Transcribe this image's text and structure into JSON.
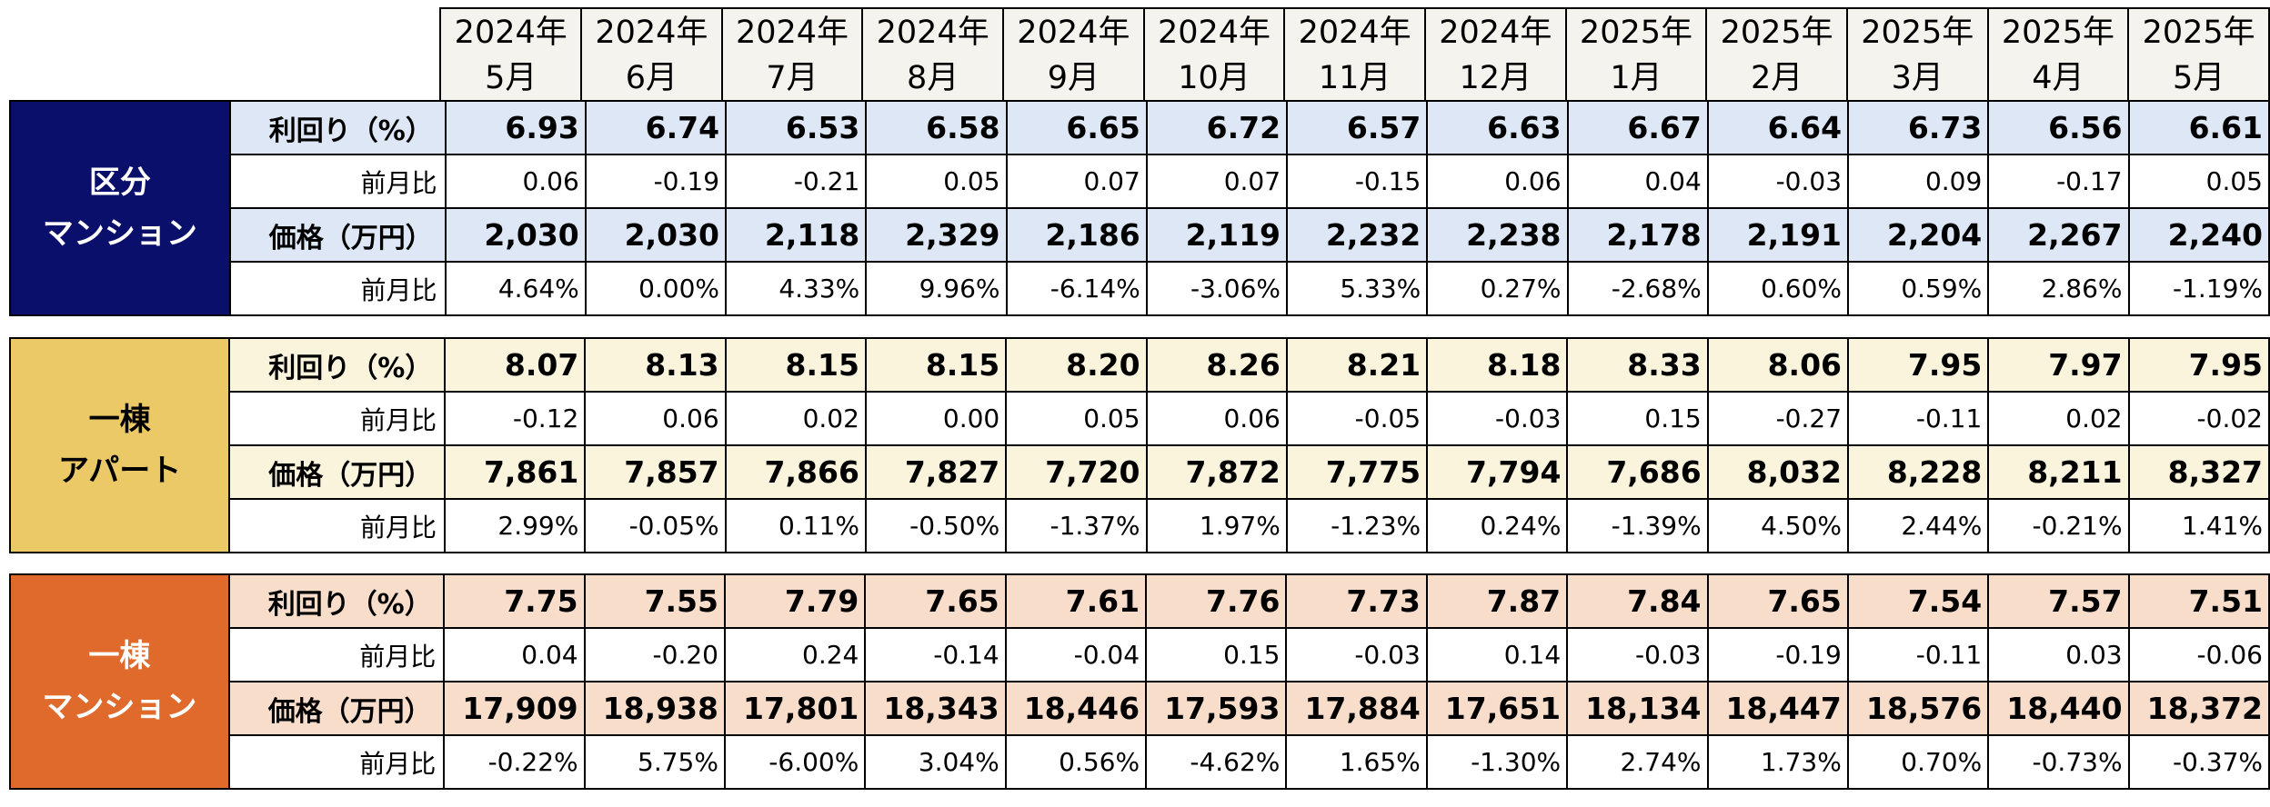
{
  "months": [
    {
      "year": "2024年",
      "month": "5月"
    },
    {
      "year": "2024年",
      "month": "6月"
    },
    {
      "year": "2024年",
      "month": "7月"
    },
    {
      "year": "2024年",
      "month": "8月"
    },
    {
      "year": "2024年",
      "month": "9月"
    },
    {
      "year": "2024年",
      "month": "10月"
    },
    {
      "year": "2024年",
      "month": "11月"
    },
    {
      "year": "2024年",
      "month": "12月"
    },
    {
      "year": "2025年",
      "month": "1月"
    },
    {
      "year": "2025年",
      "month": "2月"
    },
    {
      "year": "2025年",
      "month": "3月"
    },
    {
      "year": "2025年",
      "month": "4月"
    },
    {
      "year": "2025年",
      "month": "5月"
    }
  ],
  "labels": {
    "yield": "利回り（%）",
    "mom": "前月比",
    "price": "価格（万円）"
  },
  "sections": [
    {
      "line1": "区分",
      "line2": "マンション",
      "colors": {
        "category_bg": "#0a0f6b",
        "row_bg": "#dde7f6"
      },
      "yield": [
        "6.93",
        "6.74",
        "6.53",
        "6.58",
        "6.65",
        "6.72",
        "6.57",
        "6.63",
        "6.67",
        "6.64",
        "6.73",
        "6.56",
        "6.61"
      ],
      "yield_mom": [
        "0.06",
        "-0.19",
        "-0.21",
        "0.05",
        "0.07",
        "0.07",
        "-0.15",
        "0.06",
        "0.04",
        "-0.03",
        "0.09",
        "-0.17",
        "0.05"
      ],
      "price": [
        "2,030",
        "2,030",
        "2,118",
        "2,329",
        "2,186",
        "2,119",
        "2,232",
        "2,238",
        "2,178",
        "2,191",
        "2,204",
        "2,267",
        "2,240"
      ],
      "price_mom": [
        "4.64%",
        "0.00%",
        "4.33%",
        "9.96%",
        "-6.14%",
        "-3.06%",
        "5.33%",
        "0.27%",
        "-2.68%",
        "0.60%",
        "0.59%",
        "2.86%",
        "-1.19%"
      ]
    },
    {
      "line1": "一棟",
      "line2": "アパート",
      "colors": {
        "category_bg": "#ebc966",
        "row_bg": "#fbf4dd"
      },
      "yield": [
        "8.07",
        "8.13",
        "8.15",
        "8.15",
        "8.20",
        "8.26",
        "8.21",
        "8.18",
        "8.33",
        "8.06",
        "7.95",
        "7.97",
        "7.95"
      ],
      "yield_mom": [
        "-0.12",
        "0.06",
        "0.02",
        "0.00",
        "0.05",
        "0.06",
        "-0.05",
        "-0.03",
        "0.15",
        "-0.27",
        "-0.11",
        "0.02",
        "-0.02"
      ],
      "price": [
        "7,861",
        "7,857",
        "7,866",
        "7,827",
        "7,720",
        "7,872",
        "7,775",
        "7,794",
        "7,686",
        "8,032",
        "8,228",
        "8,211",
        "8,327"
      ],
      "price_mom": [
        "2.99%",
        "-0.05%",
        "0.11%",
        "-0.50%",
        "-1.37%",
        "1.97%",
        "-1.23%",
        "0.24%",
        "-1.39%",
        "4.50%",
        "2.44%",
        "-0.21%",
        "1.41%"
      ]
    },
    {
      "line1": "一棟",
      "line2": "マンション",
      "colors": {
        "category_bg": "#e06a2b",
        "row_bg": "#f9ddcb"
      },
      "yield": [
        "7.75",
        "7.55",
        "7.79",
        "7.65",
        "7.61",
        "7.76",
        "7.73",
        "7.87",
        "7.84",
        "7.65",
        "7.54",
        "7.57",
        "7.51"
      ],
      "yield_mom": [
        "0.04",
        "-0.20",
        "0.24",
        "-0.14",
        "-0.04",
        "0.15",
        "-0.03",
        "0.14",
        "-0.03",
        "-0.19",
        "-0.11",
        "0.03",
        "-0.06"
      ],
      "price": [
        "17,909",
        "18,938",
        "17,801",
        "18,343",
        "18,446",
        "17,593",
        "17,884",
        "17,651",
        "18,134",
        "18,447",
        "18,576",
        "18,440",
        "18,372"
      ],
      "price_mom": [
        "-0.22%",
        "5.75%",
        "-6.00%",
        "3.04%",
        "0.56%",
        "-4.62%",
        "1.65%",
        "-1.30%",
        "2.74%",
        "1.73%",
        "0.70%",
        "-0.73%",
        "-0.37%"
      ]
    }
  ]
}
